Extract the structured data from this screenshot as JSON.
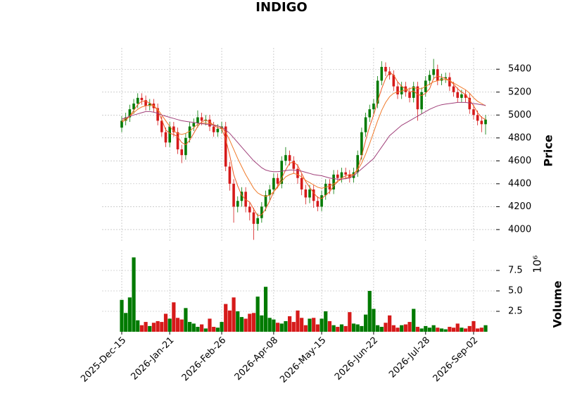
{
  "chart_data": {
    "type": "candlestick",
    "title": "INDIGO",
    "categories": [
      "2025-Dec-15",
      "2025-Dec-17",
      "2025-Dec-19",
      "2025-Dec-23",
      "2025-Dec-26",
      "2025-Dec-30",
      "2026-Jan-02",
      "2026-Jan-06",
      "2026-Jan-08",
      "2026-Jan-12",
      "2026-Jan-15",
      "2026-Jan-19",
      "2026-Jan-21",
      "2026-Jan-23",
      "2026-Jan-27",
      "2026-Jan-29",
      "2026-Feb-02",
      "2026-Feb-04",
      "2026-Feb-06",
      "2026-Feb-10",
      "2026-Feb-12",
      "2026-Feb-16",
      "2026-Feb-18",
      "2026-Feb-20",
      "2026-Feb-24",
      "2026-Feb-26",
      "2026-Mar-02",
      "2026-Mar-04",
      "2026-Mar-06",
      "2026-Mar-10",
      "2026-Mar-12",
      "2026-Mar-16",
      "2026-Mar-18",
      "2026-Mar-20",
      "2026-Mar-24",
      "2026-Mar-27",
      "2026-Apr-01",
      "2026-Apr-06",
      "2026-Apr-08",
      "2026-Apr-10",
      "2026-Apr-14",
      "2026-Apr-16",
      "2026-Apr-20",
      "2026-Apr-22",
      "2026-Apr-24",
      "2026-Apr-28",
      "2026-May-01",
      "2026-May-05",
      "2026-May-08",
      "2026-May-12",
      "2026-May-15",
      "2026-May-19",
      "2026-May-21",
      "2026-May-25",
      "2026-May-27",
      "2026-May-29",
      "2026-Jun-02",
      "2026-Jun-04",
      "2026-Jun-08",
      "2026-Jun-10",
      "2026-Jun-12",
      "2026-Jun-16",
      "2026-Jun-18",
      "2026-Jun-22",
      "2026-Jun-24",
      "2026-Jun-26",
      "2026-Jun-30",
      "2026-Jul-02",
      "2026-Jul-06",
      "2026-Jul-08",
      "2026-Jul-10",
      "2026-Jul-14",
      "2026-Jul-16",
      "2026-Jul-20",
      "2026-Jul-22",
      "2026-Jul-24",
      "2026-Jul-28",
      "2026-Jul-30",
      "2026-Aug-03",
      "2026-Aug-05",
      "2026-Aug-07",
      "2026-Aug-11",
      "2026-Aug-13",
      "2026-Aug-17",
      "2026-Aug-19",
      "2026-Aug-21",
      "2026-Aug-25",
      "2026-Aug-28",
      "2026-Sep-02",
      "2026-Sep-04",
      "2026-Sep-08",
      "2026-Sep-10"
    ],
    "open": [
      4890,
      4950,
      4980,
      5050,
      5100,
      5150,
      5130,
      5080,
      5100,
      5060,
      4950,
      4850,
      4760,
      4900,
      4850,
      4700,
      4650,
      4800,
      4900,
      4930,
      4980,
      4950,
      4960,
      4900,
      4850,
      4880,
      4900,
      4550,
      4400,
      4200,
      4250,
      4330,
      4200,
      4150,
      4050,
      4100,
      4200,
      4300,
      4350,
      4450,
      4400,
      4600,
      4650,
      4600,
      4530,
      4450,
      4350,
      4280,
      4350,
      4250,
      4200,
      4300,
      4400,
      4350,
      4480,
      4450,
      4500,
      4480,
      4450,
      4500,
      4650,
      4850,
      4980,
      5050,
      5100,
      5300,
      5420,
      5380,
      5350,
      5250,
      5180,
      5250,
      5200,
      5150,
      5250,
      5050,
      5200,
      5300,
      5350,
      5400,
      5300,
      5320,
      5330,
      5250,
      5200,
      5150,
      5180,
      5150,
      5050,
      5000,
      4950,
      4920
    ],
    "high": [
      4990,
      5020,
      5090,
      5140,
      5190,
      5190,
      5170,
      5140,
      5140,
      5100,
      4990,
      4890,
      4940,
      4940,
      4890,
      4740,
      4840,
      4940,
      4970,
      5040,
      5020,
      5000,
      5000,
      4940,
      4920,
      4940,
      4940,
      4590,
      4440,
      4290,
      4370,
      4370,
      4240,
      4190,
      4140,
      4240,
      4340,
      4390,
      4490,
      4490,
      4640,
      4720,
      4690,
      4640,
      4570,
      4490,
      4390,
      4390,
      4390,
      4290,
      4340,
      4440,
      4440,
      4520,
      4520,
      4540,
      4540,
      4520,
      4540,
      4690,
      4890,
      5020,
      5090,
      5140,
      5340,
      5470,
      5460,
      5420,
      5390,
      5290,
      5290,
      5290,
      5240,
      5290,
      5290,
      5240,
      5340,
      5390,
      5490,
      5440,
      5360,
      5370,
      5370,
      5290,
      5240,
      5220,
      5220,
      5190,
      5090,
      5040,
      4990,
      5000
    ],
    "low": [
      4850,
      4910,
      4940,
      5010,
      5060,
      5090,
      5040,
      5040,
      5020,
      4910,
      4810,
      4720,
      4720,
      4810,
      4660,
      4580,
      4610,
      4760,
      4860,
      4890,
      4910,
      4910,
      4860,
      4810,
      4810,
      4840,
      4510,
      4340,
      4060,
      4150,
      4200,
      4150,
      4080,
      3910,
      3990,
      4060,
      4160,
      4260,
      4310,
      4360,
      4360,
      4560,
      4560,
      4490,
      4400,
      4300,
      4220,
      4230,
      4190,
      4160,
      4160,
      4260,
      4310,
      4310,
      4410,
      4410,
      4440,
      4410,
      4410,
      4460,
      4610,
      4810,
      4940,
      5010,
      5060,
      5260,
      5340,
      5310,
      5210,
      5140,
      5140,
      5160,
      5110,
      5110,
      4950,
      5010,
      5160,
      5260,
      5310,
      5260,
      5260,
      5280,
      5210,
      5160,
      5110,
      5110,
      5110,
      5010,
      4960,
      4910,
      4850,
      4830
    ],
    "close": [
      4950,
      4980,
      5050,
      5100,
      5150,
      5130,
      5080,
      5100,
      5060,
      4950,
      4850,
      4760,
      4900,
      4850,
      4700,
      4650,
      4800,
      4900,
      4930,
      4980,
      4950,
      4960,
      4900,
      4850,
      4880,
      4900,
      4550,
      4400,
      4200,
      4250,
      4330,
      4200,
      4150,
      4050,
      4100,
      4200,
      4300,
      4350,
      4450,
      4400,
      4600,
      4650,
      4600,
      4530,
      4450,
      4350,
      4280,
      4350,
      4250,
      4200,
      4300,
      4400,
      4350,
      4480,
      4450,
      4500,
      4480,
      4450,
      4500,
      4650,
      4850,
      4980,
      5050,
      5100,
      5300,
      5420,
      5380,
      5350,
      5250,
      5180,
      5250,
      5200,
      5150,
      5250,
      5050,
      5200,
      5300,
      5350,
      5400,
      5300,
      5320,
      5330,
      5250,
      5200,
      5150,
      5180,
      5150,
      5050,
      5000,
      4950,
      4920,
      4960
    ],
    "volume": [
      3.9,
      2.3,
      4.2,
      9.1,
      1.4,
      0.8,
      1.2,
      0.7,
      1.1,
      1.3,
      1.2,
      2.2,
      1.6,
      3.6,
      1.7,
      1.5,
      2.9,
      1.2,
      1.0,
      0.6,
      0.9,
      0.4,
      1.6,
      0.6,
      0.5,
      1.2,
      3.4,
      2.6,
      4.2,
      2.5,
      1.8,
      1.6,
      2.2,
      2.3,
      4.3,
      2.0,
      5.5,
      1.7,
      1.5,
      1.1,
      1.0,
      1.3,
      1.9,
      1.2,
      2.6,
      1.7,
      0.8,
      1.6,
      1.7,
      0.9,
      1.6,
      2.5,
      1.3,
      0.8,
      0.6,
      0.9,
      0.7,
      2.4,
      1.0,
      0.9,
      0.7,
      2.1,
      5.0,
      2.8,
      0.8,
      0.6,
      1.1,
      2.0,
      0.8,
      0.5,
      0.8,
      0.9,
      1.2,
      2.8,
      0.6,
      0.4,
      0.7,
      0.5,
      0.8,
      0.5,
      0.4,
      0.3,
      0.6,
      0.5,
      1.0,
      0.5,
      0.4,
      0.7,
      1.3,
      0.4,
      0.5,
      0.8
    ],
    "up_color": "#007a00",
    "down_color": "#d61a1a",
    "moving_averages": [
      {
        "color": "#ee5a24",
        "values": [
          4940,
          4955,
          4990,
          5040,
          5090,
          5120,
          5120,
          5105,
          5080,
          5040,
          4960,
          4870,
          4840,
          4830,
          4810,
          4760,
          4740,
          4780,
          4840,
          4900,
          4940,
          4955,
          4940,
          4910,
          4890,
          4880,
          4790,
          4650,
          4480,
          4380,
          4300,
          4260,
          4240,
          4180,
          4120,
          4130,
          4180,
          4250,
          4330,
          4380,
          4450,
          4520,
          4580,
          4590,
          4560,
          4490,
          4420,
          4370,
          4320,
          4280,
          4270,
          4300,
          4330,
          4380,
          4420,
          4450,
          4470,
          4480,
          4480,
          4530,
          4640,
          4780,
          4900,
          5000,
          5120,
          5230,
          5320,
          5370,
          5350,
          5290,
          5250,
          5230,
          5200,
          5210,
          5180,
          5170,
          5190,
          5230,
          5320,
          5340,
          5330,
          5320,
          5300,
          5270,
          5230,
          5200,
          5180,
          5130,
          5080,
          5020,
          4980,
          4960
        ]
      },
      {
        "color": "#f07a2a",
        "values": [
          4950,
          4970,
          4990,
          5020,
          5050,
          5070,
          5080,
          5085,
          5080,
          5050,
          5000,
          4950,
          4900,
          4860,
          4840,
          4830,
          4840,
          4860,
          4890,
          4920,
          4930,
          4930,
          4925,
          4915,
          4905,
          4890,
          4850,
          4780,
          4700,
          4620,
          4550,
          4480,
          4420,
          4360,
          4320,
          4300,
          4290,
          4300,
          4330,
          4370,
          4420,
          4460,
          4480,
          4490,
          4480,
          4460,
          4430,
          4410,
          4390,
          4370,
          4360,
          4370,
          4380,
          4400,
          4420,
          4440,
          4450,
          4460,
          4480,
          4520,
          4580,
          4660,
          4750,
          4850,
          4950,
          5040,
          5110,
          5160,
          5190,
          5200,
          5210,
          5220,
          5230,
          5240,
          5230,
          5230,
          5250,
          5270,
          5290,
          5300,
          5310,
          5310,
          5300,
          5280,
          5260,
          5240,
          5220,
          5190,
          5150,
          5120,
          5100,
          5080
        ]
      },
      {
        "color": "#a0407a",
        "values": [
          4965,
          4975,
          4990,
          5000,
          5010,
          5020,
          5030,
          5030,
          5025,
          5015,
          5000,
          4990,
          4980,
          4970,
          4960,
          4950,
          4945,
          4940,
          4935,
          4930,
          4925,
          4920,
          4915,
          4910,
          4905,
          4895,
          4870,
          4840,
          4800,
          4760,
          4720,
          4680,
          4640,
          4600,
          4570,
          4540,
          4520,
          4510,
          4505,
          4505,
          4510,
          4515,
          4520,
          4520,
          4515,
          4510,
          4500,
          4490,
          4480,
          4475,
          4470,
          4460,
          4450,
          4445,
          4440,
          4440,
          4445,
          4450,
          4470,
          4500,
          4530,
          4560,
          4590,
          4620,
          4670,
          4720,
          4770,
          4820,
          4850,
          4880,
          4910,
          4930,
          4950,
          4970,
          4990,
          5010,
          5030,
          5050,
          5065,
          5080,
          5090,
          5095,
          5100,
          5105,
          5110,
          5110,
          5110,
          5105,
          5100,
          5095,
          5090,
          5085
        ]
      }
    ],
    "ylim": [
      3895,
      5586
    ],
    "yticks": [
      4000,
      4200,
      4400,
      4600,
      4800,
      5000,
      5200,
      5400
    ],
    "ylabel": "Price",
    "volume_ylim": [
      0,
      10
    ],
    "volume_yticks": [
      2.5,
      {
        "value": 5,
        "label": "5.0"
      },
      7.5
    ],
    "volume_ylabel": "Volume",
    "volume_offset_label": "10⁶",
    "xticks": [
      "2025-Dec-15",
      "2026-Jan-21",
      "2026-Feb-26",
      "2026-Apr-08",
      "2026-May-15",
      "2026-Jun-22",
      "2026-Jul-28",
      "2026-Sep-02"
    ],
    "grid": true
  }
}
